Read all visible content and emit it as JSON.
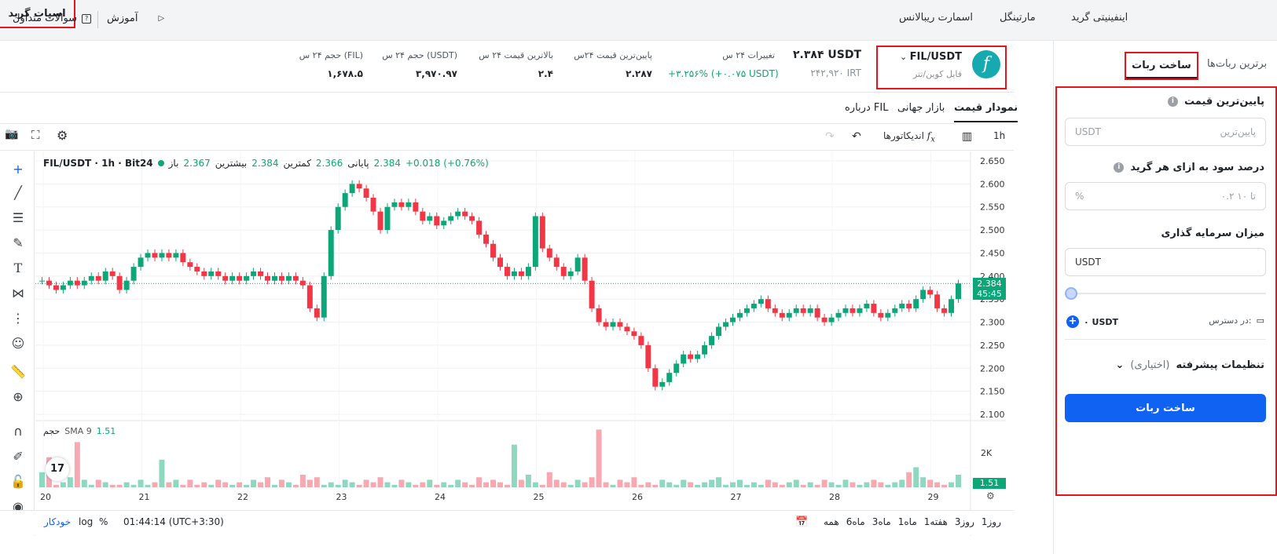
{
  "top_tabs": [
    "اسپات گرید",
    "اینفینیتی گرید",
    "مارتینگل",
    "اسمارت ریبالانس"
  ],
  "top_links": {
    "tutorial": "آموزش",
    "faq": "سوالات متداول"
  },
  "pair": {
    "symbol": "FIL/USDT",
    "name": "فایل کوین/تتر",
    "price": "۲.۳۸۴ USDT",
    "price_irt": "۲۴۲,۹۲۰ IRT"
  },
  "stats": [
    {
      "label": "تغییرات ۲۴ س",
      "value": "+۳.۲۵۶% (+۰.۰۷۵ USDT)"
    },
    {
      "label": "پایین‌ترین قیمت ۲۴س",
      "value": "۲.۲۸۷"
    },
    {
      "label": "بالاترین قیمت ۲۴ س",
      "value": "۲.۴"
    },
    {
      "label": "حجم ۲۴ س (USDT)",
      "value": "۳,۹۷۰.۹۷"
    },
    {
      "label": "حجم ۲۴ س (FIL)",
      "value": "۱,۶۷۸.۵"
    }
  ],
  "chart_tabs": [
    "نمودار قیمت",
    "بازار جهانی",
    "درباره FIL"
  ],
  "toolbar": {
    "interval": "1h",
    "indicators": "اندیکاتورها"
  },
  "legend": {
    "title": "FIL/USDT · 1h · Bit24",
    "open_label": "باز",
    "open": "2.367",
    "high_label": "بیشترین",
    "high": "2.384",
    "low_label": "کمترین",
    "low": "2.366",
    "close_label": "پایانی",
    "close": "2.384",
    "change": "+0.018 (+0.76%)"
  },
  "volume_label": "حجم",
  "sma_label": "SMA 9",
  "sma_value": "1.51",
  "price_tag": "2.384",
  "countdown": "45:45",
  "vol_tag": "1.51",
  "vol_axis": "2K",
  "bottom": {
    "ranges": [
      "1روز",
      "3روز",
      "1هفته",
      "1ماه",
      "3ماه",
      "6ماه",
      "همه"
    ],
    "time": "01:44:14 (UTC+3:30)",
    "pct": "%",
    "log": "log",
    "auto": "خودکار"
  },
  "sidebar": {
    "tab_build": "ساخت ربات",
    "tab_top": "برترین ربات‌ها",
    "lowest_label": "پایین‌ترین قیمت",
    "lowest_placeholder": "پایین‌ترین",
    "unit": "USDT",
    "profit_label": "درصد سود به ازای هر گرید",
    "profit_placeholder": "۰.۲ تا ۱۰",
    "profit_unit": "%",
    "invest_label": "میزان سرمایه گذاری",
    "avail_label": "در دسترس:",
    "avail_value": "۰ USDT",
    "advanced": "تنظیمات پیشرفته",
    "optional": "(اختیاری)",
    "submit": "ساخت ربات"
  },
  "chart_data": {
    "type": "candlestick",
    "x_ticks": [
      "20",
      "21",
      "22",
      "23",
      "24",
      "25",
      "26",
      "27",
      "28",
      "29"
    ],
    "y_ticks": [
      "2.650",
      "2.600",
      "2.550",
      "2.500",
      "2.450",
      "2.400",
      "2.350",
      "2.300",
      "2.250",
      "2.200",
      "2.150",
      "2.100"
    ],
    "ylim": [
      2.1,
      2.65
    ],
    "last": 2.384,
    "closes": [
      2.39,
      2.38,
      2.37,
      2.38,
      2.39,
      2.38,
      2.39,
      2.4,
      2.39,
      2.41,
      2.4,
      2.37,
      2.39,
      2.42,
      2.44,
      2.45,
      2.44,
      2.45,
      2.44,
      2.45,
      2.43,
      2.42,
      2.41,
      2.4,
      2.41,
      2.4,
      2.39,
      2.4,
      2.39,
      2.4,
      2.41,
      2.4,
      2.39,
      2.4,
      2.39,
      2.4,
      2.39,
      2.38,
      2.33,
      2.31,
      2.4,
      2.5,
      2.55,
      2.58,
      2.6,
      2.59,
      2.57,
      2.54,
      2.5,
      2.55,
      2.56,
      2.55,
      2.56,
      2.54,
      2.52,
      2.53,
      2.51,
      2.52,
      2.53,
      2.54,
      2.53,
      2.52,
      2.49,
      2.47,
      2.44,
      2.42,
      2.4,
      2.41,
      2.4,
      2.42,
      2.53,
      2.46,
      2.44,
      2.42,
      2.4,
      2.41,
      2.44,
      2.39,
      2.33,
      2.3,
      2.29,
      2.3,
      2.29,
      2.28,
      2.27,
      2.25,
      2.2,
      2.16,
      2.17,
      2.19,
      2.21,
      2.23,
      2.22,
      2.23,
      2.25,
      2.27,
      2.29,
      2.3,
      2.31,
      2.32,
      2.33,
      2.34,
      2.35,
      2.33,
      2.32,
      2.31,
      2.32,
      2.33,
      2.32,
      2.33,
      2.31,
      2.3,
      2.31,
      2.32,
      2.33,
      2.32,
      2.33,
      2.34,
      2.32,
      2.31,
      2.32,
      2.33,
      2.34,
      2.33,
      2.35,
      2.37,
      2.36,
      2.33,
      2.32,
      2.35,
      2.384
    ],
    "volumes": [
      0.6,
      1.2,
      0.1,
      0.2,
      0.4,
      1.8,
      0.3,
      0.1,
      0.3,
      0.2,
      0.1,
      0.1,
      0.2,
      0.1,
      0.3,
      0.1,
      0.2,
      1.1,
      0.2,
      0.3,
      0.1,
      0.3,
      0.1,
      0.2,
      0.1,
      0.3,
      0.2,
      0.1,
      0.2,
      0.1,
      0.3,
      0.2,
      0.4,
      0.1,
      0.3,
      0.2,
      0.1,
      0.5,
      0.3,
      0.4,
      0.1,
      0.2,
      0.1,
      0.3,
      0.2,
      0.1,
      0.3,
      0.2,
      0.4,
      0.2,
      0.1,
      0.3,
      0.2,
      0.1,
      0.2,
      0.3,
      0.1,
      0.2,
      0.1,
      0.3,
      0.2,
      0.1,
      0.4,
      0.2,
      0.3,
      0.2,
      0.1,
      1.7,
      0.3,
      0.5,
      0.2,
      0.1,
      0.6,
      0.3,
      0.2,
      0.1,
      0.3,
      0.2,
      0.4,
      2.3,
      0.2,
      0.1,
      0.3,
      0.2,
      0.4,
      0.1,
      0.2,
      0.1,
      0.3,
      0.2,
      0.1,
      0.3,
      0.2,
      0.1,
      0.2,
      0.3,
      0.4,
      0.1,
      0.2,
      0.3,
      0.1,
      0.2,
      0.1,
      0.3,
      0.2,
      0.1,
      0.2,
      0.3,
      0.1,
      0.2,
      0.1,
      0.3,
      0.2,
      0.1,
      0.3,
      0.2,
      0.1,
      0.2,
      0.3,
      0.2,
      0.1,
      0.2,
      0.3,
      0.6,
      0.8,
      0.4,
      0.3,
      0.2,
      0.1,
      0.2,
      0.5
    ]
  }
}
